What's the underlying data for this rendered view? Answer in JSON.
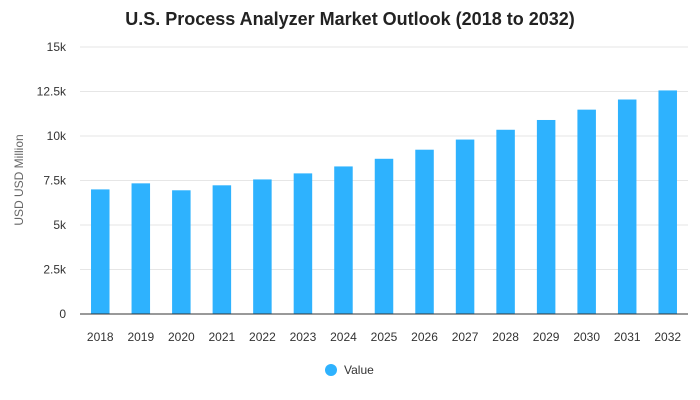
{
  "chart_data": {
    "type": "bar",
    "title": "U.S. Process Analyzer Market Outlook (2018 to 2032)",
    "ylabel": "USD USD Million",
    "xlabel": "",
    "categories": [
      "2018",
      "2019",
      "2020",
      "2021",
      "2022",
      "2023",
      "2024",
      "2025",
      "2026",
      "2027",
      "2028",
      "2029",
      "2030",
      "2031",
      "2032"
    ],
    "series": [
      {
        "name": "Value",
        "color": "#2eb2fe",
        "values": [
          7000,
          7340,
          6950,
          7230,
          7560,
          7900,
          8290,
          8720,
          9230,
          9800,
          10350,
          10900,
          11480,
          12050,
          12560
        ]
      }
    ],
    "ylim": [
      0,
      15000
    ],
    "yticks": [
      0,
      2500,
      5000,
      7500,
      10000,
      12500,
      15000
    ],
    "ytick_labels": [
      "0",
      "2.5k",
      "5k",
      "7.5k",
      "10k",
      "12.5k",
      "15k"
    ],
    "grid": "horizontal",
    "legend_position": "bottom-center",
    "colors": {
      "grid": "#e6e6e6",
      "axis": "#333333"
    }
  }
}
